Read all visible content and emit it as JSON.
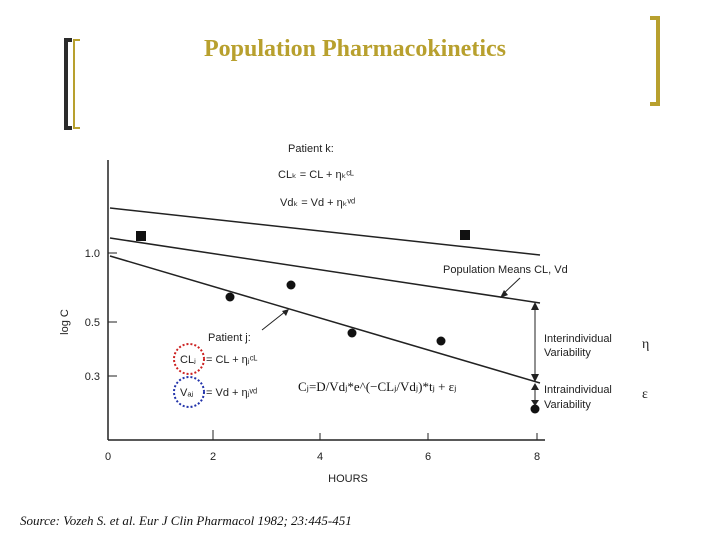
{
  "title": "Population Pharmacokinetics",
  "source": "Source: Vozeh S. et al. Eur J Clin Pharmacol 1982; 23:445-451",
  "colors": {
    "title": "#b8a02e",
    "bracket": "#b8a02e",
    "bracket_dark": "#2b2b2b",
    "circle_red": "#cc2222",
    "circle_blue": "#2233aa"
  },
  "figure": {
    "y_axis_label": "log C",
    "x_axis_label": "HOURS",
    "y_ticks": [
      "1.0",
      "0.5",
      "0.3"
    ],
    "x_ticks": [
      "0",
      "2",
      "4",
      "6",
      "8"
    ],
    "patient_k": {
      "title": "Patient k:",
      "cl_eq": "CLₖ = CL + ηₖᶜᴸ",
      "vd_eq": "Vdₖ = Vd + ηₖᵛᵈ"
    },
    "patient_j": {
      "title": "Patient j:",
      "cl_lhs": "CLⱼ",
      "cl_rhs": "= CL + ηⱼᶜᴸ",
      "vd_lhs": "Vₐⱼ",
      "vd_rhs": "= Vd + ηⱼᵛᵈ"
    },
    "population_means": "Population Means CL, Vd",
    "interindividual": [
      "Interindividual",
      "Variability"
    ],
    "intraindividual": [
      "Intraindividual",
      "Variability"
    ],
    "eta": "η",
    "epsilon": "ε",
    "concentration_equation": "Cⱼ=D/Vdⱼ*e^(−CLⱼ/Vdⱼ)*tⱼ + εⱼ"
  }
}
